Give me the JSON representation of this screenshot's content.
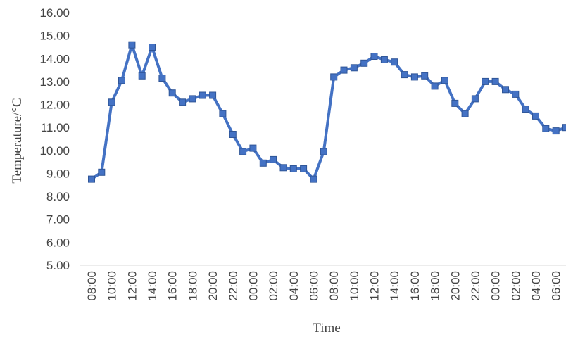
{
  "chart_data": {
    "type": "line",
    "title": "",
    "xlabel": "Time",
    "ylabel": "Temperature/°C",
    "ylim": [
      5,
      16
    ],
    "y_ticks": [
      "5.00",
      "6.00",
      "7.00",
      "8.00",
      "9.00",
      "10.00",
      "11.00",
      "12.00",
      "13.00",
      "14.00",
      "15.00",
      "16.00"
    ],
    "grid": false,
    "legend": "none",
    "x_tick_labels": [
      "08:00",
      "10:00",
      "12:00",
      "14:00",
      "16:00",
      "18:00",
      "20:00",
      "22:00",
      "00:00",
      "02:00",
      "04:00",
      "06:00",
      "08:00",
      "10:00",
      "12:00",
      "14:00",
      "16:00",
      "18:00",
      "20:00",
      "22:00",
      "00:00",
      "02:00",
      "04:00",
      "06:00"
    ],
    "series": [
      {
        "color": "#4472C4",
        "values": [
          8.75,
          9.05,
          12.1,
          13.05,
          14.6,
          13.25,
          14.5,
          13.15,
          12.5,
          12.1,
          12.25,
          12.4,
          12.4,
          11.6,
          10.7,
          9.95,
          10.1,
          9.45,
          9.6,
          9.25,
          9.2,
          9.2,
          8.75,
          9.95,
          13.2,
          13.5,
          13.6,
          13.8,
          14.1,
          13.95,
          13.85,
          13.3,
          13.2,
          13.25,
          12.8,
          13.05,
          12.05,
          11.6,
          12.25,
          13.0,
          13.0,
          12.65,
          12.45,
          11.8,
          11.5,
          10.95,
          10.85,
          11.0
        ]
      }
    ]
  }
}
